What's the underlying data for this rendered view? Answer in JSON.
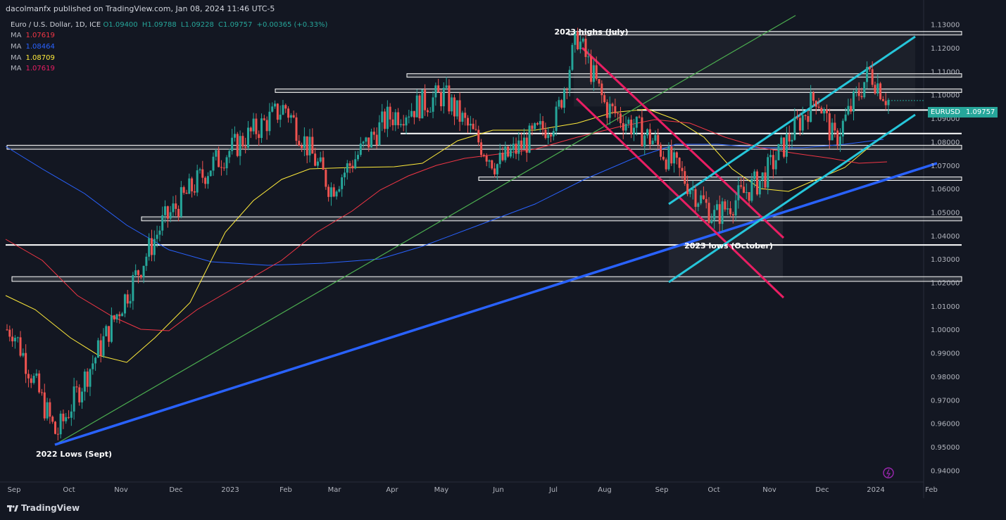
{
  "header": {
    "publisher": "dacolmanfx published on TradingView.com, Jan 08, 2024 11:46 UTC-5"
  },
  "legend": {
    "symbol_line": "Euro / U.S. Dollar, 1D, ICE",
    "ohlc": {
      "o": "O1.09400",
      "h": "H1.09788",
      "l": "L1.09228",
      "c": "C1.09757",
      "chg": "+0.00365 (+0.33%)"
    },
    "ma": [
      {
        "label": "MA",
        "value": "1.07619",
        "color": "#f23645"
      },
      {
        "label": "MA",
        "value": "1.08464",
        "color": "#2962ff"
      },
      {
        "label": "MA",
        "value": "1.08709",
        "color": "#ffeb3b"
      },
      {
        "label": "MA",
        "value": "1.07619",
        "color": "#e91e63"
      }
    ]
  },
  "price_tag": {
    "symbol": "EURUSD",
    "price": "1.09757",
    "color": "#26a69a"
  },
  "footer": {
    "brand": "TradingView"
  },
  "chart_data": {
    "type": "candlestick",
    "symbol": "EURUSD",
    "y_axis": {
      "min": 0.935,
      "max": 1.135,
      "ticks": [
        "1.13000",
        "1.12000",
        "1.11000",
        "1.10000",
        "1.09000",
        "1.08000",
        "1.07000",
        "1.06000",
        "1.05000",
        "1.04000",
        "1.03000",
        "1.02000",
        "1.01000",
        "1.00000",
        "0.99000",
        "0.98000",
        "0.97000",
        "0.96000",
        "0.95000",
        "0.94000"
      ]
    },
    "x_axis": {
      "labels": [
        "Sep",
        "Oct",
        "Nov",
        "Dec",
        "2023",
        "Feb",
        "Mar",
        "Apr",
        "May",
        "Jun",
        "Jul",
        "Aug",
        "Sep",
        "Oct",
        "Nov",
        "Dec",
        "2024",
        "Feb"
      ]
    },
    "key_points": [
      {
        "x": "Sep",
        "y": 1.0
      },
      {
        "x": "Oct",
        "y": 0.955
      },
      {
        "x": "Nov",
        "y": 0.985
      },
      {
        "x": "Dec",
        "y": 1.045
      },
      {
        "x": "2023",
        "y": 1.07
      },
      {
        "x": "Feb",
        "y": 1.095
      },
      {
        "x": "Mar",
        "y": 1.06
      },
      {
        "x": "Apr",
        "y": 1.09
      },
      {
        "x": "May",
        "y": 1.1
      },
      {
        "x": "Jun",
        "y": 1.07
      },
      {
        "x": "Jul",
        "y": 1.09
      },
      {
        "x": "Jul",
        "y": 1.125
      },
      {
        "x": "Aug",
        "y": 1.095
      },
      {
        "x": "Sep",
        "y": 1.08
      },
      {
        "x": "Oct",
        "y": 1.048
      },
      {
        "x": "Nov",
        "y": 1.065
      },
      {
        "x": "Dec",
        "y": 1.1
      },
      {
        "x": "Dec",
        "y": 1.08
      },
      {
        "x": "2024",
        "y": 1.11
      },
      {
        "x": "2024",
        "y": 1.0976
      }
    ],
    "horizontal_zones": [
      {
        "top": 1.127,
        "bottom": 1.1255,
        "color": "#ffffff"
      },
      {
        "top": 1.109,
        "bottom": 1.1075,
        "color": "#ffffff"
      },
      {
        "top": 1.1025,
        "bottom": 1.101,
        "color": "#ffffff"
      },
      {
        "top": 1.0935,
        "bottom": 1.093,
        "color": "#ffffff"
      },
      {
        "top": 1.0835,
        "bottom": 1.083,
        "color": "#ffffff"
      },
      {
        "top": 1.0785,
        "bottom": 1.0768,
        "color": "#ffffff"
      },
      {
        "top": 1.065,
        "bottom": 1.0635,
        "color": "#ffffff"
      },
      {
        "top": 1.048,
        "bottom": 1.0463,
        "color": "#ffffff"
      },
      {
        "top": 1.036,
        "bottom": 1.0355,
        "color": "#ffffff"
      },
      {
        "top": 1.0225,
        "bottom": 1.0205,
        "color": "#ffffff"
      }
    ],
    "annotations": [
      {
        "text": "2023 highs (July)"
      },
      {
        "text": "2023 lows (October)"
      },
      {
        "text": "2022 Lows (Sept)"
      }
    ]
  }
}
